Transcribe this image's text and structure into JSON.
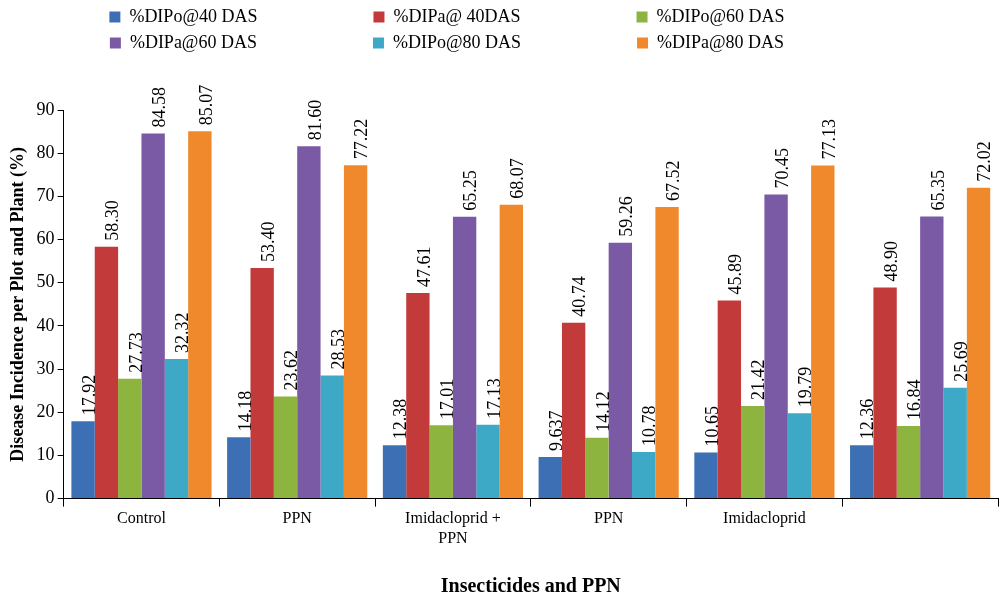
{
  "chart_data": {
    "type": "bar",
    "xlabel": "Insecticides and PPN",
    "ylabel": "Disease Incidence per Plot and Plant (%)",
    "categories": [
      "Control",
      "PPN",
      "Imidacloprid + PPN",
      "PPN",
      "Imidacloprid",
      null
    ],
    "series": [
      {
        "name": "%DIPo@40 DAS",
        "color": "#3c6fb4",
        "values": [
          17.92,
          14.18,
          12.38,
          9.637,
          10.65,
          12.36
        ],
        "value_labels": [
          "17.92",
          "14.18",
          "12.38",
          "9.637",
          "10.65",
          "12.36"
        ]
      },
      {
        "name": "%DIPa@ 40DAS",
        "color": "#c23b3a",
        "values": [
          58.3,
          53.4,
          47.61,
          40.74,
          45.89,
          48.9
        ],
        "value_labels": [
          "58.30",
          "53.40",
          "47.61",
          "40.74",
          "45.89",
          "48.90"
        ]
      },
      {
        "name": "%DIPo@60 DAS",
        "color": "#8db43f",
        "values": [
          27.73,
          23.62,
          17.01,
          14.12,
          21.42,
          16.84
        ],
        "value_labels": [
          "27.73",
          "23.62",
          "17.01",
          "14.12",
          "21.42",
          "16.84"
        ]
      },
      {
        "name": "%DIPa@60 DAS",
        "color": "#7b5aa5",
        "values": [
          84.58,
          81.6,
          65.25,
          59.26,
          70.45,
          65.35
        ],
        "value_labels": [
          "84.58",
          "81.60",
          "65.25",
          "59.26",
          "70.45",
          "65.35"
        ]
      },
      {
        "name": "%DIPo@80 DAS",
        "color": "#3ea8c7",
        "values": [
          32.32,
          28.53,
          17.13,
          10.78,
          19.79,
          25.69
        ],
        "value_labels": [
          "32.32",
          "28.53",
          "17.13",
          "10.78",
          "19.79",
          "25.69"
        ]
      },
      {
        "name": "%DIPa@80 DAS",
        "color": "#f0892b",
        "values": [
          85.07,
          77.22,
          68.07,
          67.52,
          77.13,
          72.02
        ],
        "value_labels": [
          "85.07",
          "77.22",
          "68.07",
          "67.52",
          "77.13",
          "72.02"
        ]
      }
    ],
    "ylim": [
      0,
      90
    ],
    "yticks": [
      0,
      10,
      20,
      30,
      40,
      50,
      60,
      70,
      80,
      90
    ],
    "legend": "top"
  }
}
